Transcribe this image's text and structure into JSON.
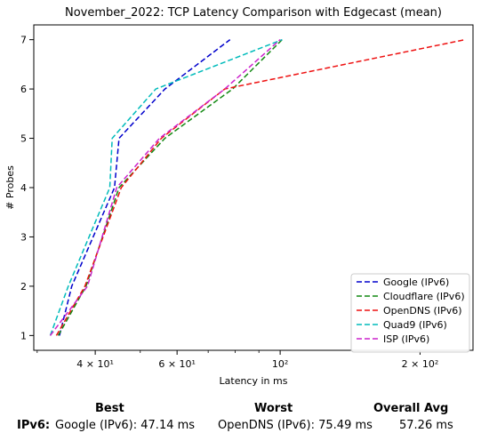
{
  "chart_data": {
    "type": "line",
    "title": "November_2022: TCP Latency Comparison with Edgecast (mean)",
    "xlabel": "Latency in ms",
    "ylabel": "# Probes",
    "xscale": "log",
    "xlim": [
      29.5,
      260
    ],
    "ylim": [
      0.7,
      7.3
    ],
    "xticks": [
      {
        "value": 40,
        "label": "4 × 10¹"
      },
      {
        "value": 60,
        "label": "6 × 10¹"
      },
      {
        "value": 100,
        "label": "10²"
      },
      {
        "value": 200,
        "label": "2 × 10²"
      }
    ],
    "yticks": [
      1,
      2,
      3,
      4,
      5,
      6,
      7
    ],
    "grid": false,
    "legend_position": "lower-right",
    "line_style": "dashed",
    "series": [
      {
        "name": "Google (IPv6)",
        "color": "#0000cc",
        "points": [
          [
            33.5,
            1
          ],
          [
            35.6,
            2
          ],
          [
            44.0,
            4
          ],
          [
            45.0,
            5
          ],
          [
            56.5,
            6
          ],
          [
            78.0,
            7
          ]
        ]
      },
      {
        "name": "Cloudflare (IPv6)",
        "color": "#118811",
        "points": [
          [
            33.3,
            1
          ],
          [
            38.2,
            2
          ],
          [
            45.0,
            4
          ],
          [
            56.5,
            5
          ],
          [
            79.0,
            6
          ],
          [
            101.0,
            7
          ]
        ]
      },
      {
        "name": "OpenDNS (IPv6)",
        "color": "#ee1111",
        "points": [
          [
            33.0,
            1
          ],
          [
            38.0,
            2
          ],
          [
            45.5,
            4
          ],
          [
            55.5,
            5
          ],
          [
            76.0,
            6
          ],
          [
            250.0,
            7
          ]
        ]
      },
      {
        "name": "Quad9 (IPv6)",
        "color": "#00bbbb",
        "points": [
          [
            32.0,
            1
          ],
          [
            35.0,
            2
          ],
          [
            43.0,
            4
          ],
          [
            43.5,
            5
          ],
          [
            54.0,
            6
          ],
          [
            101.0,
            7
          ]
        ]
      },
      {
        "name": "ISP (IPv6)",
        "color": "#cc22cc",
        "points": [
          [
            32.0,
            1
          ],
          [
            38.5,
            2
          ],
          [
            44.5,
            4
          ],
          [
            55.0,
            5
          ],
          [
            76.0,
            6
          ],
          [
            100.0,
            7
          ]
        ]
      }
    ]
  },
  "summary": {
    "headers": {
      "best": "Best",
      "worst": "Worst",
      "overall": "Overall Avg"
    },
    "row_label": "IPv6:",
    "best": "Google (IPv6): 47.14 ms",
    "worst": "OpenDNS (IPv6): 75.49 ms",
    "overall": "57.26 ms"
  }
}
